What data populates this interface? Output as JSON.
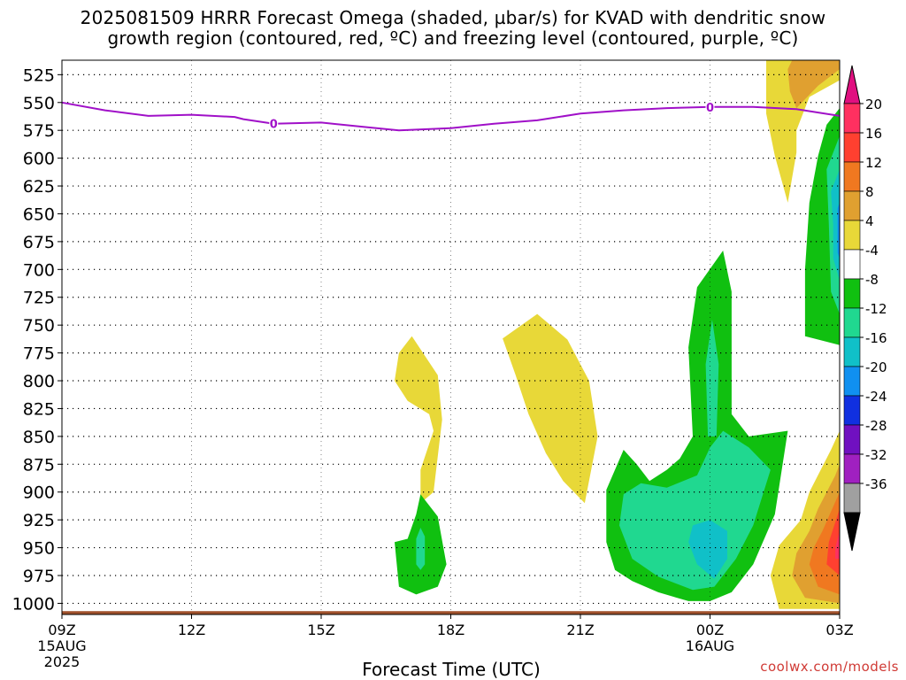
{
  "title": "2025081509 HRRR Forecast Omega (shaded, µbar/s) for KVAD with dendritic snow\ngrowth region (contoured, red, ºC) and freezing level (contoured, purple, ºC)",
  "xlabel": "Forecast Time (UTC)",
  "credit": "coolwx.com/models",
  "chart_data": {
    "type": "area",
    "title": "2025081509 HRRR Forecast Omega (shaded, µbar/s) for KVAD with dendritic snow growth region (contoured, red, ºC) and freezing level (contoured, purple, ºC)",
    "xlabel": "Forecast Time (UTC)",
    "ylabel": "",
    "x_unit": "hours from 2025-08-15 09Z",
    "xlim": [
      0,
      18
    ],
    "ylim": [
      1010,
      512
    ],
    "y_axis": "pressure (mb), inverted",
    "grid": true,
    "x_ticks": [
      {
        "x": 0,
        "label": "09Z",
        "sub1": "15AUG",
        "sub2": "2025"
      },
      {
        "x": 3,
        "label": "12Z"
      },
      {
        "x": 6,
        "label": "15Z"
      },
      {
        "x": 9,
        "label": "18Z"
      },
      {
        "x": 12,
        "label": "21Z"
      },
      {
        "x": 15,
        "label": "00Z",
        "sub1": "16AUG"
      },
      {
        "x": 18,
        "label": "03Z"
      }
    ],
    "y_ticks": [
      525,
      550,
      575,
      600,
      625,
      650,
      675,
      700,
      725,
      750,
      775,
      800,
      825,
      850,
      875,
      900,
      925,
      950,
      975,
      1000
    ],
    "freezing_level": {
      "label": "0",
      "label_at_x": [
        4.9,
        15.0
      ],
      "x": [
        0,
        1,
        2,
        3,
        4,
        4.2,
        4.9,
        6,
        7,
        7.8,
        9,
        10,
        11,
        12,
        13,
        14,
        15,
        16,
        17,
        18
      ],
      "p": [
        550,
        557,
        562,
        561,
        563,
        565,
        569,
        568,
        572,
        575,
        573,
        569,
        566,
        560,
        557,
        555,
        554,
        554,
        556,
        562
      ]
    },
    "surface": {
      "color": "#a0522d",
      "pressure": 1007
    },
    "legend": {
      "levels": [
        20,
        16,
        12,
        8,
        4,
        -4,
        -8,
        -12,
        -16,
        -20,
        -24,
        -28,
        -32,
        -36
      ],
      "colors": [
        "#ff3060",
        "#ff4030",
        "#f07820",
        "#e0a030",
        "#e8d838",
        "#ffffff",
        "#10c010",
        "#20d890",
        "#10c0c8",
        "#1090f0",
        "#1030e0",
        "#7010c0",
        "#a020c0",
        "#a0a0a0",
        "#000000"
      ],
      "top_extension": "#e01080",
      "bottom_extension": "#000000"
    },
    "omega_regions": [
      {
        "level": 4,
        "color": "#e8d838",
        "points": [
          [
            16.3,
            512
          ],
          [
            18,
            512
          ],
          [
            18,
            530
          ],
          [
            17.3,
            545
          ],
          [
            17.0,
            575
          ],
          [
            17.0,
            595
          ],
          [
            16.8,
            640
          ],
          [
            16.5,
            598
          ],
          [
            16.3,
            560
          ]
        ]
      },
      {
        "level": 8,
        "color": "#e0a030",
        "points": [
          [
            16.9,
            512
          ],
          [
            18,
            512
          ],
          [
            18,
            520
          ],
          [
            17.5,
            535
          ],
          [
            17.0,
            555
          ],
          [
            16.85,
            540
          ],
          [
            16.8,
            520
          ]
        ]
      },
      {
        "level": -4,
        "color": "#10c010",
        "points": [
          [
            17.5,
            598
          ],
          [
            17.7,
            570
          ],
          [
            18,
            555
          ],
          [
            18,
            768
          ],
          [
            17.2,
            760
          ],
          [
            17.2,
            700
          ],
          [
            17.3,
            640
          ]
        ]
      },
      {
        "level": -8,
        "color": "#20d890",
        "points": [
          [
            17.7,
            610
          ],
          [
            18,
            580
          ],
          [
            18,
            740
          ],
          [
            17.8,
            720
          ],
          [
            17.75,
            660
          ]
        ]
      },
      {
        "level": -12,
        "color": "#10c0c8",
        "points": [
          [
            17.8,
            630
          ],
          [
            18,
            610
          ],
          [
            18,
            710
          ],
          [
            17.85,
            690
          ],
          [
            17.85,
            660
          ]
        ]
      },
      {
        "level": -16,
        "color": "#1090f0",
        "points": [
          [
            17.95,
            645
          ],
          [
            18,
            640
          ],
          [
            18,
            690
          ],
          [
            17.95,
            685
          ]
        ]
      },
      {
        "level": 4,
        "color": "#e8d838",
        "points": [
          [
            7.8,
            775
          ],
          [
            8.1,
            760
          ],
          [
            8.7,
            795
          ],
          [
            8.8,
            835
          ],
          [
            8.6,
            900
          ],
          [
            8.3,
            910
          ],
          [
            8.3,
            880
          ],
          [
            8.6,
            845
          ],
          [
            8.5,
            830
          ],
          [
            8.0,
            818
          ],
          [
            7.7,
            800
          ]
        ]
      },
      {
        "level": 4,
        "color": "#e8d838",
        "points": [
          [
            10.2,
            762
          ],
          [
            11.0,
            740
          ],
          [
            11.7,
            763
          ],
          [
            12.2,
            800
          ],
          [
            12.4,
            850
          ],
          [
            12.1,
            910
          ],
          [
            11.6,
            890
          ],
          [
            11.2,
            865
          ],
          [
            10.8,
            830
          ],
          [
            10.5,
            795
          ]
        ]
      },
      {
        "level": -4,
        "color": "#10c010",
        "points": [
          [
            8.0,
            942
          ],
          [
            8.2,
            920
          ],
          [
            8.3,
            902
          ],
          [
            8.7,
            922
          ],
          [
            8.9,
            965
          ],
          [
            8.7,
            985
          ],
          [
            8.2,
            992
          ],
          [
            7.8,
            985
          ],
          [
            7.7,
            945
          ]
        ]
      },
      {
        "level": -8,
        "color": "#20d890",
        "points": [
          [
            8.2,
            942
          ],
          [
            8.3,
            932
          ],
          [
            8.4,
            940
          ],
          [
            8.4,
            965
          ],
          [
            8.3,
            970
          ],
          [
            8.2,
            965
          ]
        ]
      },
      {
        "level": -4,
        "color": "#10c010",
        "points": [
          [
            12.6,
            898
          ],
          [
            13.0,
            862
          ],
          [
            13.3,
            875
          ],
          [
            13.6,
            890
          ],
          [
            14.0,
            880
          ],
          [
            14.3,
            870
          ],
          [
            14.6,
            850
          ],
          [
            14.5,
            770
          ],
          [
            14.7,
            716
          ],
          [
            15.3,
            683
          ],
          [
            15.5,
            720
          ],
          [
            15.5,
            830
          ],
          [
            15.9,
            850
          ],
          [
            16.8,
            845
          ],
          [
            16.5,
            920
          ],
          [
            16.0,
            965
          ],
          [
            15.5,
            990
          ],
          [
            15.0,
            998
          ],
          [
            14.5,
            998
          ],
          [
            13.8,
            990
          ],
          [
            13.2,
            980
          ],
          [
            12.8,
            970
          ],
          [
            12.6,
            945
          ]
        ]
      },
      {
        "level": -8,
        "color": "#20d890",
        "points": [
          [
            13.0,
            902
          ],
          [
            13.4,
            892
          ],
          [
            14.0,
            896
          ],
          [
            14.7,
            885
          ],
          [
            15.0,
            860
          ],
          [
            15.3,
            845
          ],
          [
            15.9,
            860
          ],
          [
            16.4,
            880
          ],
          [
            16.0,
            930
          ],
          [
            15.6,
            960
          ],
          [
            15.1,
            985
          ],
          [
            14.6,
            988
          ],
          [
            13.8,
            976
          ],
          [
            13.2,
            960
          ],
          [
            12.9,
            930
          ]
        ]
      },
      {
        "level": -8,
        "color": "#20d890",
        "points": [
          [
            14.9,
            785
          ],
          [
            15.05,
            745
          ],
          [
            15.2,
            785
          ],
          [
            15.15,
            850
          ],
          [
            14.95,
            850
          ]
        ]
      },
      {
        "level": -12,
        "color": "#10c0c8",
        "points": [
          [
            14.6,
            930
          ],
          [
            15.0,
            925
          ],
          [
            15.4,
            935
          ],
          [
            15.4,
            960
          ],
          [
            15.1,
            978
          ],
          [
            14.7,
            965
          ],
          [
            14.5,
            945
          ]
        ]
      },
      {
        "level": 4,
        "color": "#e8d838",
        "points": [
          [
            17.3,
            900
          ],
          [
            17.8,
            862
          ],
          [
            18,
            845
          ],
          [
            18,
            1005
          ],
          [
            16.6,
            1005
          ],
          [
            16.4,
            975
          ],
          [
            16.6,
            948
          ],
          [
            17.1,
            925
          ]
        ]
      },
      {
        "level": 8,
        "color": "#e0a030",
        "points": [
          [
            17.5,
            915
          ],
          [
            17.9,
            885
          ],
          [
            18,
            875
          ],
          [
            18,
            1000
          ],
          [
            17.2,
            995
          ],
          [
            16.9,
            975
          ],
          [
            17.0,
            955
          ],
          [
            17.3,
            935
          ]
        ]
      },
      {
        "level": 12,
        "color": "#f07820",
        "points": [
          [
            17.6,
            935
          ],
          [
            18,
            900
          ],
          [
            18,
            992
          ],
          [
            17.5,
            985
          ],
          [
            17.3,
            965
          ],
          [
            17.4,
            950
          ]
        ]
      },
      {
        "level": 16,
        "color": "#ff4030",
        "points": [
          [
            17.75,
            945
          ],
          [
            18,
            915
          ],
          [
            18,
            975
          ],
          [
            17.7,
            965
          ]
        ]
      },
      {
        "level": 20,
        "color": "#ff3060",
        "points": [
          [
            17.9,
            950
          ],
          [
            18,
            935
          ],
          [
            18,
            960
          ],
          [
            17.9,
            960
          ]
        ]
      }
    ]
  }
}
